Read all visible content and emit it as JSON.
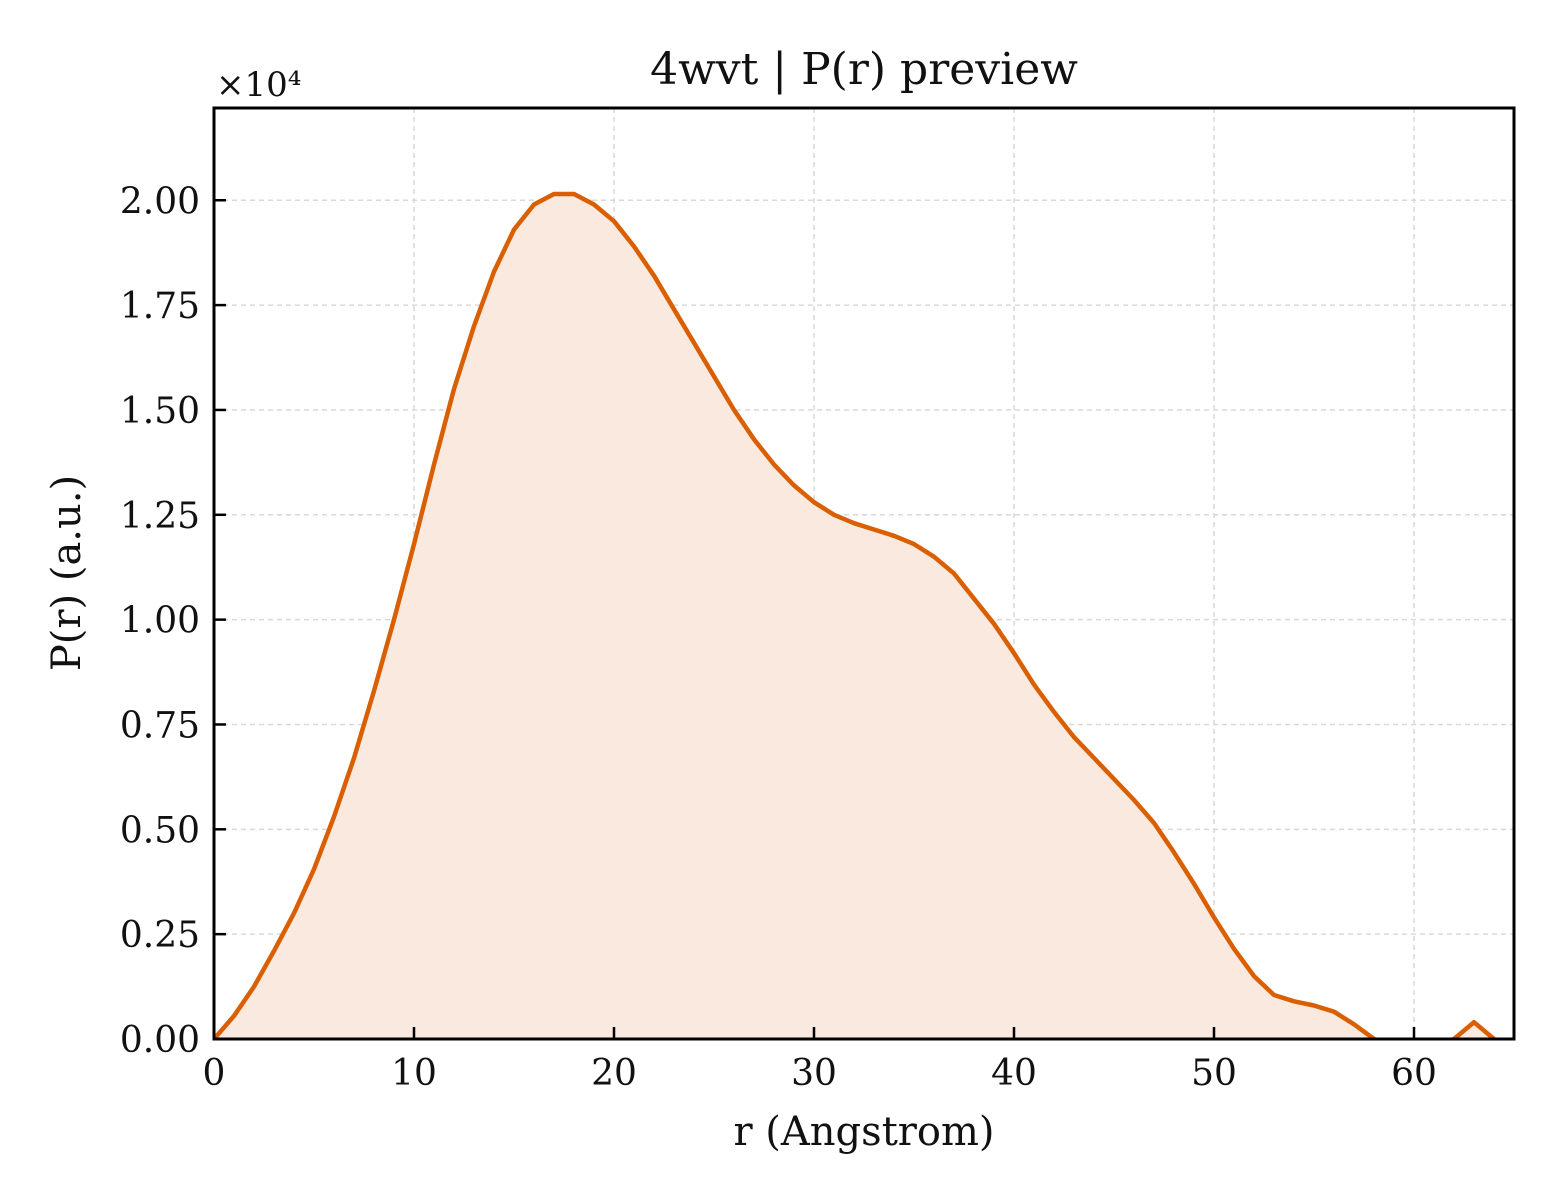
{
  "chart_data": {
    "type": "area",
    "title": "4wvt | P(r) preview",
    "xlabel": "r (Angstrom)",
    "ylabel": "P(r) (a.u.)",
    "y_multiplier_label": "×10⁴",
    "y_scale_factor": 10000,
    "xlim": [
      0,
      65
    ],
    "ylim": [
      0,
      22200
    ],
    "x_ticks": [
      0,
      10,
      20,
      30,
      40,
      50,
      60
    ],
    "x_tick_labels": [
      "0",
      "10",
      "20",
      "30",
      "40",
      "50",
      "60"
    ],
    "y_ticks": [
      0,
      2500,
      5000,
      7500,
      10000,
      12500,
      15000,
      17500,
      20000
    ],
    "y_tick_labels": [
      "0.00",
      "0.25",
      "0.50",
      "0.75",
      "1.00",
      "1.25",
      "1.50",
      "1.75",
      "2.00"
    ],
    "grid": true,
    "colors": {
      "line": "#d95f02",
      "fill": "#f9e9de",
      "grid": "#d9d9d9",
      "axis": "#000000"
    },
    "series": [
      {
        "x": [
          0,
          1,
          2,
          3,
          4,
          5,
          6,
          7,
          8,
          9,
          10,
          11,
          12,
          13,
          14,
          15,
          16,
          17,
          18,
          19,
          20,
          21,
          22,
          23,
          24,
          25,
          26,
          27,
          28,
          29,
          30,
          31,
          32,
          33,
          34,
          35,
          36,
          37,
          38,
          39,
          40,
          41,
          42,
          43,
          44,
          45,
          46,
          47,
          48,
          49,
          50,
          51,
          52,
          53,
          54,
          55,
          56,
          57,
          58,
          59,
          60,
          61,
          62,
          63,
          64,
          65
        ],
        "values": [
          0,
          550,
          1250,
          2100,
          3000,
          4050,
          5300,
          6700,
          8300,
          10000,
          11800,
          13700,
          15500,
          17000,
          18300,
          19300,
          19900,
          20150,
          20150,
          19900,
          19500,
          18900,
          18200,
          17400,
          16600,
          15800,
          15000,
          14300,
          13700,
          13200,
          12800,
          12500,
          12300,
          12150,
          12000,
          11800,
          11500,
          11100,
          10500,
          9900,
          9200,
          8450,
          7800,
          7200,
          6700,
          6200,
          5700,
          5150,
          4450,
          3700,
          2900,
          2150,
          1500,
          1050,
          900,
          800,
          650,
          350,
          0,
          -200,
          -250,
          -150,
          0,
          400,
          0,
          -350
        ]
      }
    ]
  }
}
